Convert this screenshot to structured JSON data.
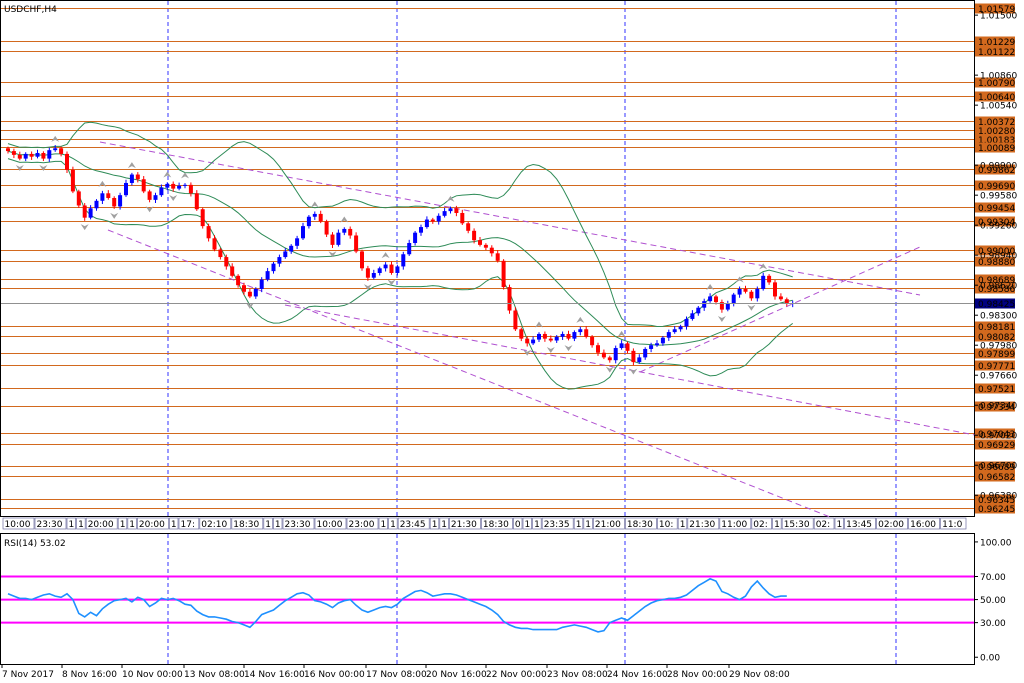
{
  "chart_data": [
    {
      "type": "candlestick",
      "title": "USDCHF,H4",
      "ylim": [
        0.9618,
        1.0164
      ],
      "price_ticks": [
        "1.01500",
        "1.00860",
        "1.00540",
        "0.99900",
        "0.99580",
        "0.99260",
        "0.98940",
        "0.98620",
        "0.98300",
        "0.97980",
        "0.97660",
        "0.97340",
        "0.97020",
        "0.96700",
        "0.96380"
      ],
      "price_levels": [
        "1.01579",
        "1.01229",
        "1.01122",
        "1.00790",
        "1.00640",
        "1.00372",
        "1.00280",
        "1.00183",
        "1.00089",
        "0.99862",
        "0.99690",
        "0.99454",
        "0.99304",
        "0.99000",
        "0.98880",
        "0.98689",
        "0.98586",
        "0.98181",
        "0.98082",
        "0.97899",
        "0.97771",
        "0.97521",
        "0.97334",
        "0.97043",
        "0.96929",
        "0.96689",
        "0.96582",
        "0.96345",
        "0.96245"
      ],
      "current_price": "0.98425",
      "closes": [
        1.0005,
        1.0001,
        0.9997,
        1.0002,
        0.9999,
        1.0003,
        0.9997,
        1.0006,
        1.0008,
        1.0002,
        0.9985,
        0.9962,
        0.9947,
        0.9934,
        0.9944,
        0.9952,
        0.996,
        0.9955,
        0.9946,
        0.9958,
        0.9971,
        0.998,
        0.9975,
        0.9962,
        0.9953,
        0.9958,
        0.9966,
        0.997,
        0.9965,
        0.9968,
        0.9969,
        0.996,
        0.9943,
        0.9925,
        0.9912,
        0.99,
        0.9892,
        0.9882,
        0.9872,
        0.9862,
        0.9855,
        0.985,
        0.9858,
        0.9868,
        0.9877,
        0.9885,
        0.9892,
        0.9898,
        0.9904,
        0.9912,
        0.9925,
        0.9935,
        0.9938,
        0.993,
        0.9916,
        0.9905,
        0.9918,
        0.9922,
        0.9915,
        0.9898,
        0.988,
        0.987,
        0.9875,
        0.988,
        0.9884,
        0.9875,
        0.9882,
        0.9895,
        0.9907,
        0.9918,
        0.9924,
        0.9932,
        0.993,
        0.9936,
        0.9941,
        0.9944,
        0.9939,
        0.9928,
        0.992,
        0.991,
        0.9905,
        0.9902,
        0.9896,
        0.9888,
        0.986,
        0.9835,
        0.9815,
        0.9805,
        0.98,
        0.9804,
        0.981,
        0.9805,
        0.9803,
        0.9807,
        0.981,
        0.9805,
        0.9812,
        0.9815,
        0.9807,
        0.9798,
        0.979,
        0.9785,
        0.9782,
        0.9795,
        0.98,
        0.9792,
        0.978,
        0.9785,
        0.9794,
        0.9798,
        0.98,
        0.9806,
        0.9812,
        0.9815,
        0.9818,
        0.9826,
        0.9832,
        0.9838,
        0.9845,
        0.985,
        0.9844,
        0.9836,
        0.9842,
        0.9852,
        0.9858,
        0.9855,
        0.9848,
        0.9858,
        0.9872,
        0.9865,
        0.985,
        0.9847,
        0.9842,
        0.9843
      ],
      "time_labels": [
        "7 Nov 2017",
        "8 Nov 16:00",
        "10 Nov 00:00",
        "13 Nov 08:00",
        "14 Nov 16:00",
        "16 Nov 00:00",
        "17 Nov 08:00",
        "20 Nov 16:00",
        "22 Nov 00:00",
        "23 Nov 08:00",
        "24 Nov 16:00",
        "28 Nov 00:00",
        "29 Nov 08:00"
      ],
      "session_labels": [
        "10:00",
        "23:30",
        "1",
        "1",
        "20:00",
        "1",
        "1",
        "20:00",
        "1",
        "17:",
        "02:10",
        "18:30",
        "1",
        "1",
        "23:30",
        "10:00",
        "23:00",
        "1",
        "1",
        "23:45",
        "1",
        "1",
        "21:30",
        "18:30",
        "0",
        "1",
        "1",
        "23:35",
        "1",
        "1",
        "21:00",
        "18:30",
        "10:",
        "1",
        "21:30",
        "11:00",
        "02:",
        "1",
        "15:30",
        "02:",
        "1",
        "13:45",
        "02:00",
        "16:00",
        "11:0",
        "21:30"
      ]
    },
    {
      "type": "line",
      "title": "RSI(14) 53.02",
      "ylim": [
        -5,
        106
      ],
      "ticks": [
        "100.00",
        "70.00",
        "50.00",
        "30.00",
        "0.00"
      ],
      "levels": [
        70,
        50,
        30
      ],
      "values": [
        55,
        53,
        51,
        51,
        50,
        52,
        54,
        55,
        53,
        52,
        55,
        50,
        38,
        35,
        39,
        36,
        42,
        46,
        49,
        50,
        51,
        48,
        52,
        50,
        44,
        47,
        51,
        50,
        51,
        49,
        46,
        45,
        40,
        37,
        35,
        35,
        34,
        33,
        31,
        30,
        28,
        26,
        31,
        37,
        39,
        41,
        45,
        49,
        52,
        55,
        56,
        54,
        49,
        48,
        46,
        43,
        47,
        49,
        50,
        45,
        41,
        39,
        41,
        43,
        44,
        43,
        46,
        51,
        54,
        57,
        58,
        56,
        53,
        54,
        55,
        55,
        54,
        52,
        50,
        48,
        46,
        44,
        41,
        37,
        31,
        28,
        26,
        25,
        25,
        24,
        24,
        24,
        24,
        24,
        26,
        27,
        28,
        27,
        26,
        24,
        22,
        23,
        30,
        32,
        34,
        32,
        36,
        40,
        44,
        47,
        49,
        50,
        51,
        51,
        52,
        54,
        58,
        62,
        65,
        68,
        66,
        57,
        55,
        52,
        50,
        53,
        61,
        66,
        60,
        55,
        52,
        53,
        53
      ]
    }
  ]
}
